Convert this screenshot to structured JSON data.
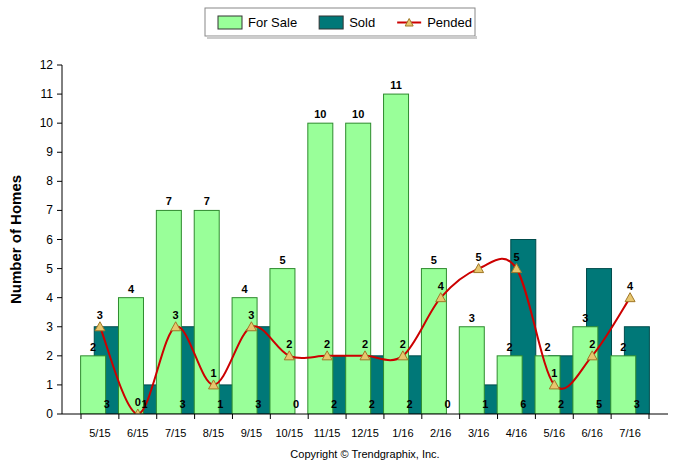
{
  "chart_data": {
    "type": "bar",
    "y_label": "Number of Homes",
    "footer": "Copyright © Trendgraphix, Inc.",
    "categories": [
      "5/15",
      "6/15",
      "7/15",
      "8/15",
      "9/15",
      "10/15",
      "11/15",
      "12/15",
      "1/16",
      "2/16",
      "3/16",
      "4/16",
      "5/16",
      "6/16",
      "7/16"
    ],
    "series": [
      {
        "name": "For Sale",
        "type": "bar",
        "color": "#99ff99",
        "values": [
          2,
          4,
          7,
          7,
          4,
          5,
          10,
          10,
          11,
          5,
          3,
          2,
          2,
          3,
          2
        ]
      },
      {
        "name": "Sold",
        "type": "bar",
        "color": "#007878",
        "values": [
          3,
          1,
          3,
          1,
          3,
          0,
          2,
          2,
          2,
          0,
          1,
          6,
          2,
          5,
          3
        ]
      },
      {
        "name": "Pended",
        "type": "line",
        "color": "#cc0000",
        "marker": "triangle",
        "line_style": "smooth",
        "values": [
          3,
          0,
          3,
          1,
          3,
          2,
          2,
          2,
          2,
          4,
          5,
          5,
          1,
          2,
          4
        ]
      }
    ],
    "ylim": [
      0,
      12
    ],
    "yticks": [
      0,
      1,
      2,
      3,
      4,
      5,
      6,
      7,
      8,
      9,
      10,
      11,
      12
    ],
    "grid": false,
    "data_labels": true,
    "legend": "top"
  }
}
